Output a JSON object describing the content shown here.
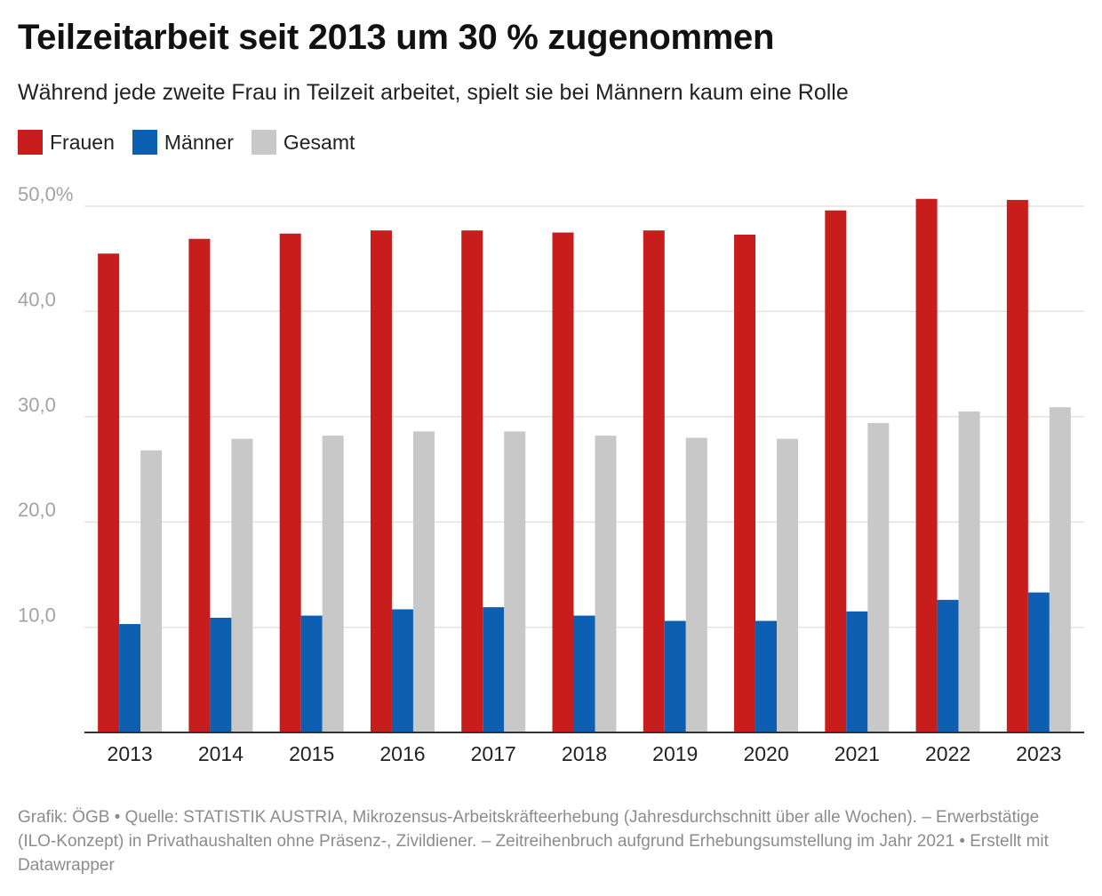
{
  "title": "Teilzeitarbeit seit 2013 um 30 % zugenommen",
  "subtitle": "Während jede zweite Frau in Teilzeit arbeitet, spielt sie bei Männern kaum eine Rolle",
  "footer": {
    "source": "Grafik: ÖGB • Quelle: STATISTIK AUSTRIA, Mikrozensus-Arbeitskräfteerhebung (Jahresdurchschnitt über alle Wochen). – Erwerbstätige (ILO-Konzept) in Privathaushalten ohne Präsenz-, Zivildiener. – Zeitreihenbruch aufgrund Erhebungsumstellung im Jahr 2021 • Erstellt mit Datawrapper"
  },
  "chart_data": {
    "type": "bar",
    "categories": [
      "2013",
      "2014",
      "2015",
      "2016",
      "2017",
      "2018",
      "2019",
      "2020",
      "2021",
      "2022",
      "2023"
    ],
    "series": [
      {
        "name": "Frauen",
        "color": "#c71e1d",
        "values": [
          45.5,
          46.9,
          47.4,
          47.7,
          47.7,
          47.5,
          47.7,
          47.3,
          49.6,
          50.7,
          50.6
        ]
      },
      {
        "name": "Männer",
        "color": "#0c5fb1",
        "values": [
          10.3,
          10.9,
          11.1,
          11.7,
          11.9,
          11.1,
          10.6,
          10.6,
          11.5,
          12.6,
          13.3
        ]
      },
      {
        "name": "Gesamt",
        "color": "#c8c8c8",
        "values": [
          26.8,
          27.9,
          28.2,
          28.6,
          28.6,
          28.2,
          28.0,
          27.9,
          29.4,
          30.5,
          30.9
        ]
      }
    ],
    "y_ticks": [
      {
        "value": 10,
        "label": "10,0"
      },
      {
        "value": 20,
        "label": "20,0"
      },
      {
        "value": 30,
        "label": "30,0"
      },
      {
        "value": 40,
        "label": "40,0"
      },
      {
        "value": 50,
        "label": "50,0%"
      }
    ],
    "ylim": [
      0,
      50
    ],
    "grid": true,
    "legend_position": "top-left"
  }
}
